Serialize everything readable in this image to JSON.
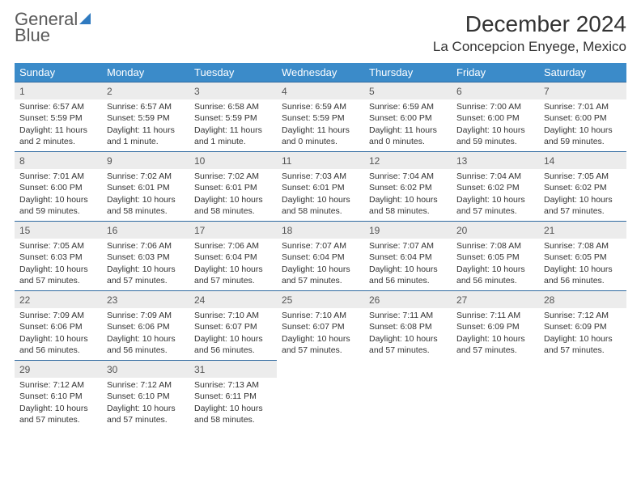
{
  "logo": {
    "text_top": "General",
    "text_bottom": "Blue"
  },
  "title": "December 2024",
  "location": "La Concepcion Enyege, Mexico",
  "colors": {
    "header_bg": "#3b8bc9",
    "header_text": "#ffffff",
    "daynum_bg": "#ececec",
    "border": "#2f6aa0",
    "brand": "#2f7ac0"
  },
  "weekdays": [
    "Sunday",
    "Monday",
    "Tuesday",
    "Wednesday",
    "Thursday",
    "Friday",
    "Saturday"
  ],
  "weeks": [
    [
      {
        "n": "1",
        "sr": "6:57 AM",
        "ss": "5:59 PM",
        "dl": "11 hours and 2 minutes."
      },
      {
        "n": "2",
        "sr": "6:57 AM",
        "ss": "5:59 PM",
        "dl": "11 hours and 1 minute."
      },
      {
        "n": "3",
        "sr": "6:58 AM",
        "ss": "5:59 PM",
        "dl": "11 hours and 1 minute."
      },
      {
        "n": "4",
        "sr": "6:59 AM",
        "ss": "5:59 PM",
        "dl": "11 hours and 0 minutes."
      },
      {
        "n": "5",
        "sr": "6:59 AM",
        "ss": "6:00 PM",
        "dl": "11 hours and 0 minutes."
      },
      {
        "n": "6",
        "sr": "7:00 AM",
        "ss": "6:00 PM",
        "dl": "10 hours and 59 minutes."
      },
      {
        "n": "7",
        "sr": "7:01 AM",
        "ss": "6:00 PM",
        "dl": "10 hours and 59 minutes."
      }
    ],
    [
      {
        "n": "8",
        "sr": "7:01 AM",
        "ss": "6:00 PM",
        "dl": "10 hours and 59 minutes."
      },
      {
        "n": "9",
        "sr": "7:02 AM",
        "ss": "6:01 PM",
        "dl": "10 hours and 58 minutes."
      },
      {
        "n": "10",
        "sr": "7:02 AM",
        "ss": "6:01 PM",
        "dl": "10 hours and 58 minutes."
      },
      {
        "n": "11",
        "sr": "7:03 AM",
        "ss": "6:01 PM",
        "dl": "10 hours and 58 minutes."
      },
      {
        "n": "12",
        "sr": "7:04 AM",
        "ss": "6:02 PM",
        "dl": "10 hours and 58 minutes."
      },
      {
        "n": "13",
        "sr": "7:04 AM",
        "ss": "6:02 PM",
        "dl": "10 hours and 57 minutes."
      },
      {
        "n": "14",
        "sr": "7:05 AM",
        "ss": "6:02 PM",
        "dl": "10 hours and 57 minutes."
      }
    ],
    [
      {
        "n": "15",
        "sr": "7:05 AM",
        "ss": "6:03 PM",
        "dl": "10 hours and 57 minutes."
      },
      {
        "n": "16",
        "sr": "7:06 AM",
        "ss": "6:03 PM",
        "dl": "10 hours and 57 minutes."
      },
      {
        "n": "17",
        "sr": "7:06 AM",
        "ss": "6:04 PM",
        "dl": "10 hours and 57 minutes."
      },
      {
        "n": "18",
        "sr": "7:07 AM",
        "ss": "6:04 PM",
        "dl": "10 hours and 57 minutes."
      },
      {
        "n": "19",
        "sr": "7:07 AM",
        "ss": "6:04 PM",
        "dl": "10 hours and 56 minutes."
      },
      {
        "n": "20",
        "sr": "7:08 AM",
        "ss": "6:05 PM",
        "dl": "10 hours and 56 minutes."
      },
      {
        "n": "21",
        "sr": "7:08 AM",
        "ss": "6:05 PM",
        "dl": "10 hours and 56 minutes."
      }
    ],
    [
      {
        "n": "22",
        "sr": "7:09 AM",
        "ss": "6:06 PM",
        "dl": "10 hours and 56 minutes."
      },
      {
        "n": "23",
        "sr": "7:09 AM",
        "ss": "6:06 PM",
        "dl": "10 hours and 56 minutes."
      },
      {
        "n": "24",
        "sr": "7:10 AM",
        "ss": "6:07 PM",
        "dl": "10 hours and 56 minutes."
      },
      {
        "n": "25",
        "sr": "7:10 AM",
        "ss": "6:07 PM",
        "dl": "10 hours and 57 minutes."
      },
      {
        "n": "26",
        "sr": "7:11 AM",
        "ss": "6:08 PM",
        "dl": "10 hours and 57 minutes."
      },
      {
        "n": "27",
        "sr": "7:11 AM",
        "ss": "6:09 PM",
        "dl": "10 hours and 57 minutes."
      },
      {
        "n": "28",
        "sr": "7:12 AM",
        "ss": "6:09 PM",
        "dl": "10 hours and 57 minutes."
      }
    ],
    [
      {
        "n": "29",
        "sr": "7:12 AM",
        "ss": "6:10 PM",
        "dl": "10 hours and 57 minutes."
      },
      {
        "n": "30",
        "sr": "7:12 AM",
        "ss": "6:10 PM",
        "dl": "10 hours and 57 minutes."
      },
      {
        "n": "31",
        "sr": "7:13 AM",
        "ss": "6:11 PM",
        "dl": "10 hours and 58 minutes."
      },
      null,
      null,
      null,
      null
    ]
  ],
  "labels": {
    "sunrise": "Sunrise:",
    "sunset": "Sunset:",
    "daylight": "Daylight:"
  }
}
